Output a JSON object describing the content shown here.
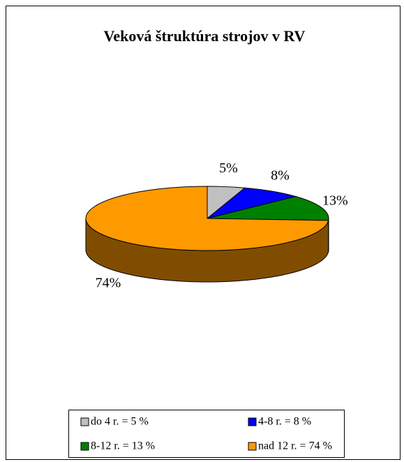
{
  "chart_data": {
    "type": "pie3d",
    "title": "Veková štruktúra strojov v RV",
    "categories": [
      "do 4 r. = 5 %",
      "4-8 r. = 8 %",
      "8-12 r. = 13 %",
      "nad 12 r. = 74 %"
    ],
    "values": [
      5,
      8,
      13,
      74
    ],
    "value_labels": [
      "5%",
      "8%",
      "13%",
      "74%"
    ],
    "colors": [
      "#c0c0c0",
      "#0000ff",
      "#008000",
      "#ff9900"
    ],
    "legend": "bottom"
  }
}
